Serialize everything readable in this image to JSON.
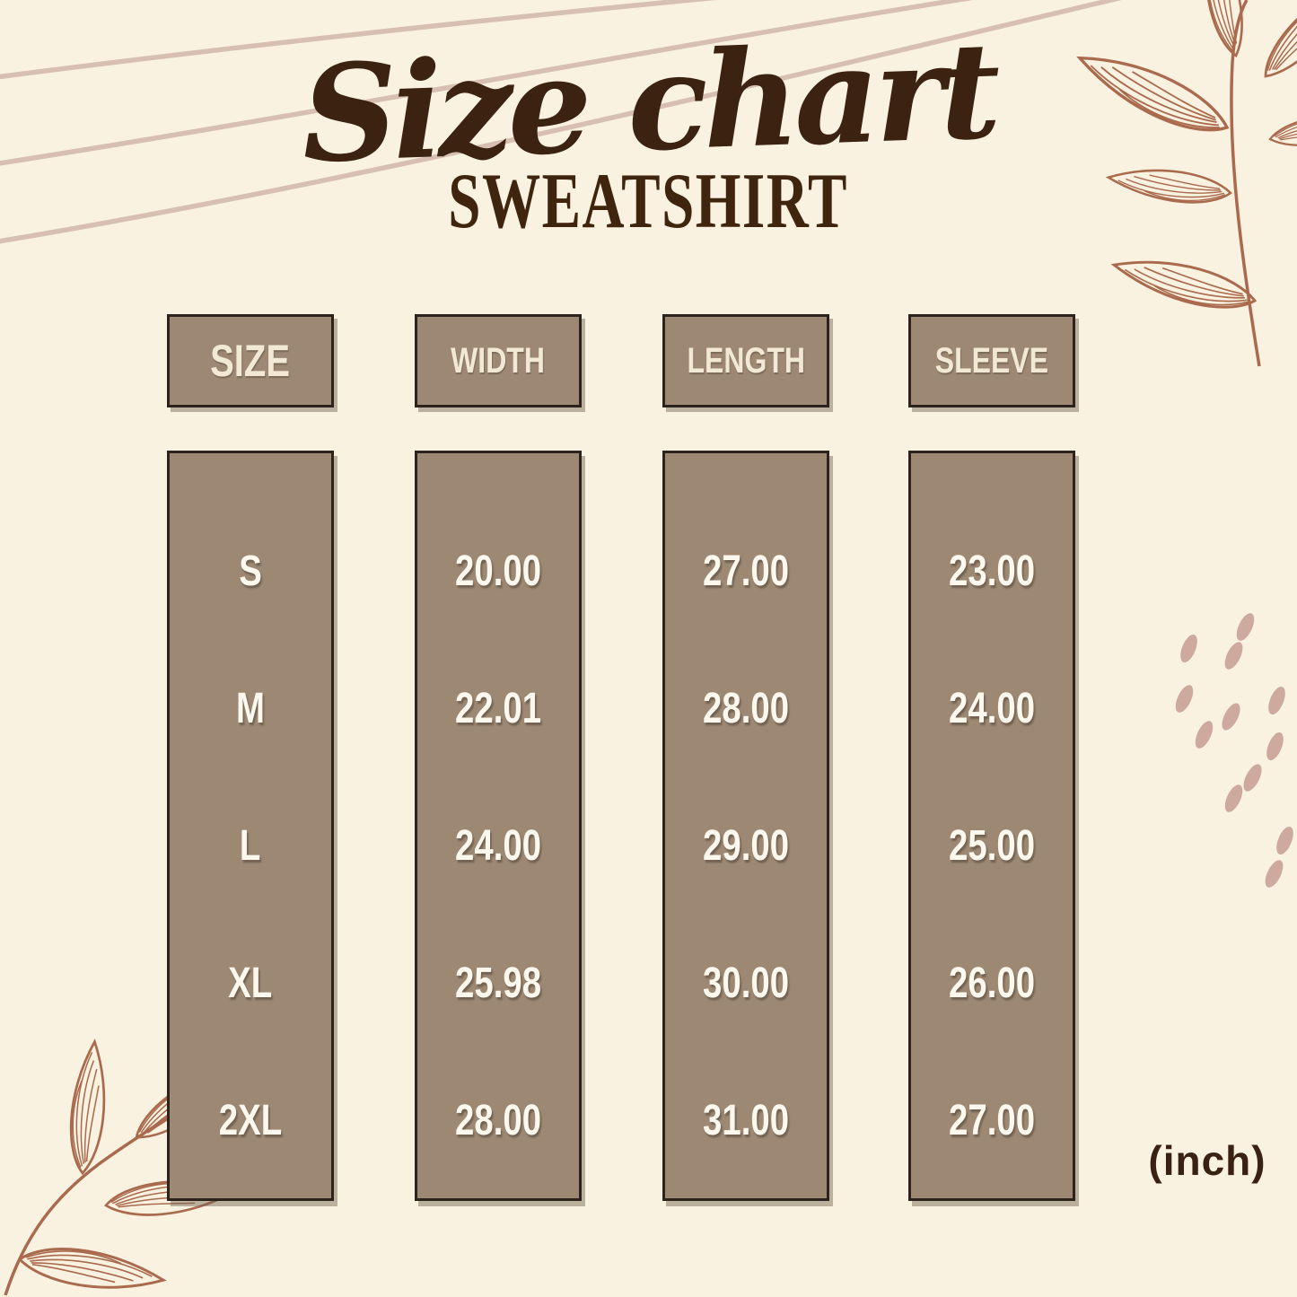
{
  "chart_data": {
    "type": "table",
    "title": "Size chart",
    "subtitle": "SWEATSHIRT",
    "unit_label": "(inch)",
    "columns": [
      "SIZE",
      "WIDTH",
      "LENGTH",
      "SLEEVE"
    ],
    "rows": [
      [
        "S",
        "20.00",
        "27.00",
        "23.00"
      ],
      [
        "M",
        "22.01",
        "28.00",
        "24.00"
      ],
      [
        "L",
        "24.00",
        "29.00",
        "25.00"
      ],
      [
        "XL",
        "25.98",
        "30.00",
        "26.00"
      ],
      [
        "2XL",
        "28.00",
        "31.00",
        "27.00"
      ]
    ]
  },
  "decor": {
    "top_right_icon": "leaf-branch-icon",
    "bottom_left_icon": "leaf-branch-icon",
    "right_middle_icon": "scattered-seed-dots",
    "top_left_icon": "sweeping-curved-lines"
  },
  "colors": {
    "background": "#faf2e1",
    "box_fill": "#9c8873",
    "box_border": "#2b231c",
    "header_text": "#f2e9d5",
    "value_text": "#fcf8ee",
    "title_text": "#3b2211",
    "subtitle_text": "#40250e",
    "unit_text": "#3a2213",
    "curve_line": "#d7bfb2",
    "leaf_line": "#a96a4d",
    "dot_fill": "#cda99e"
  }
}
